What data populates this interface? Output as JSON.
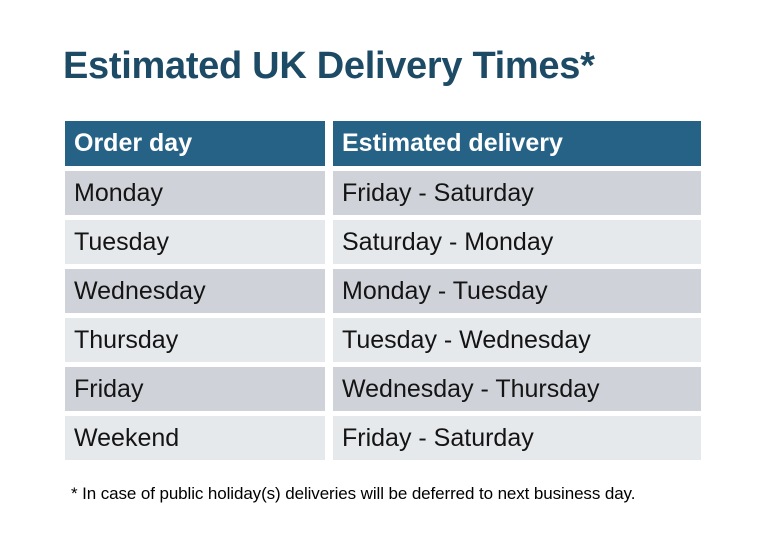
{
  "title": "Estimated UK Delivery Times*",
  "table": {
    "headers": [
      "Order day",
      "Estimated delivery"
    ],
    "rows": [
      [
        "Monday",
        "Friday - Saturday"
      ],
      [
        "Tuesday",
        "Saturday - Monday"
      ],
      [
        "Wednesday",
        "Monday - Tuesday"
      ],
      [
        "Thursday",
        "Tuesday - Wednesday"
      ],
      [
        "Friday",
        "Wednesday - Thursday"
      ],
      [
        "Weekend",
        "Friday - Saturday"
      ]
    ]
  },
  "footnote": "* In case of public holiday(s) deliveries will be deferred to next business day.",
  "colors": {
    "header_bg": "#266285",
    "row_dark": "#cfd3d9",
    "row_light": "#e6e9ec",
    "title": "#1d4b66",
    "header_text": "#ffffff",
    "body_text": "#141414",
    "page_bg": "#ffffff"
  }
}
